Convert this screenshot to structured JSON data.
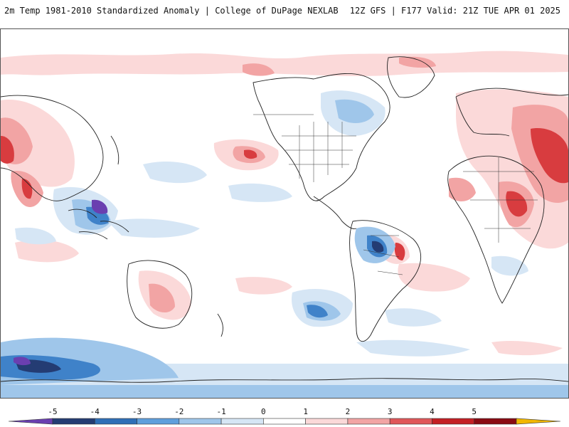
{
  "header": {
    "title_left": "2m Temp 1981-2010 Standardized Anomaly | College of DuPage NEXLAB",
    "title_right": "12Z GFS | F177 Valid: 21Z TUE APR 01 2025"
  },
  "colorbar": {
    "labels": [
      "-5",
      "-4",
      "-3",
      "-2",
      "-1",
      "0",
      "1",
      "2",
      "3",
      "4",
      "5"
    ],
    "colors": [
      "#6a3fb0",
      "#243c73",
      "#2f6fb7",
      "#5f9fdc",
      "#9fc6ea",
      "#d6e6f5",
      "#ffffff",
      "#fbd9d9",
      "#f2a4a4",
      "#e0575a",
      "#c41f24",
      "#8a0a12",
      "#f2b700"
    ]
  },
  "map": {
    "background": "#ffffff",
    "anomaly_colors": {
      "warm_light": "#fbd9d9",
      "warm_mid": "#f2a4a4",
      "warm_strong": "#d83c3f",
      "cold_light": "#d6e6f5",
      "cold_mid": "#9fc6ea",
      "cold_strong": "#3f82c9",
      "cold_extreme": "#6a3fb0"
    }
  }
}
